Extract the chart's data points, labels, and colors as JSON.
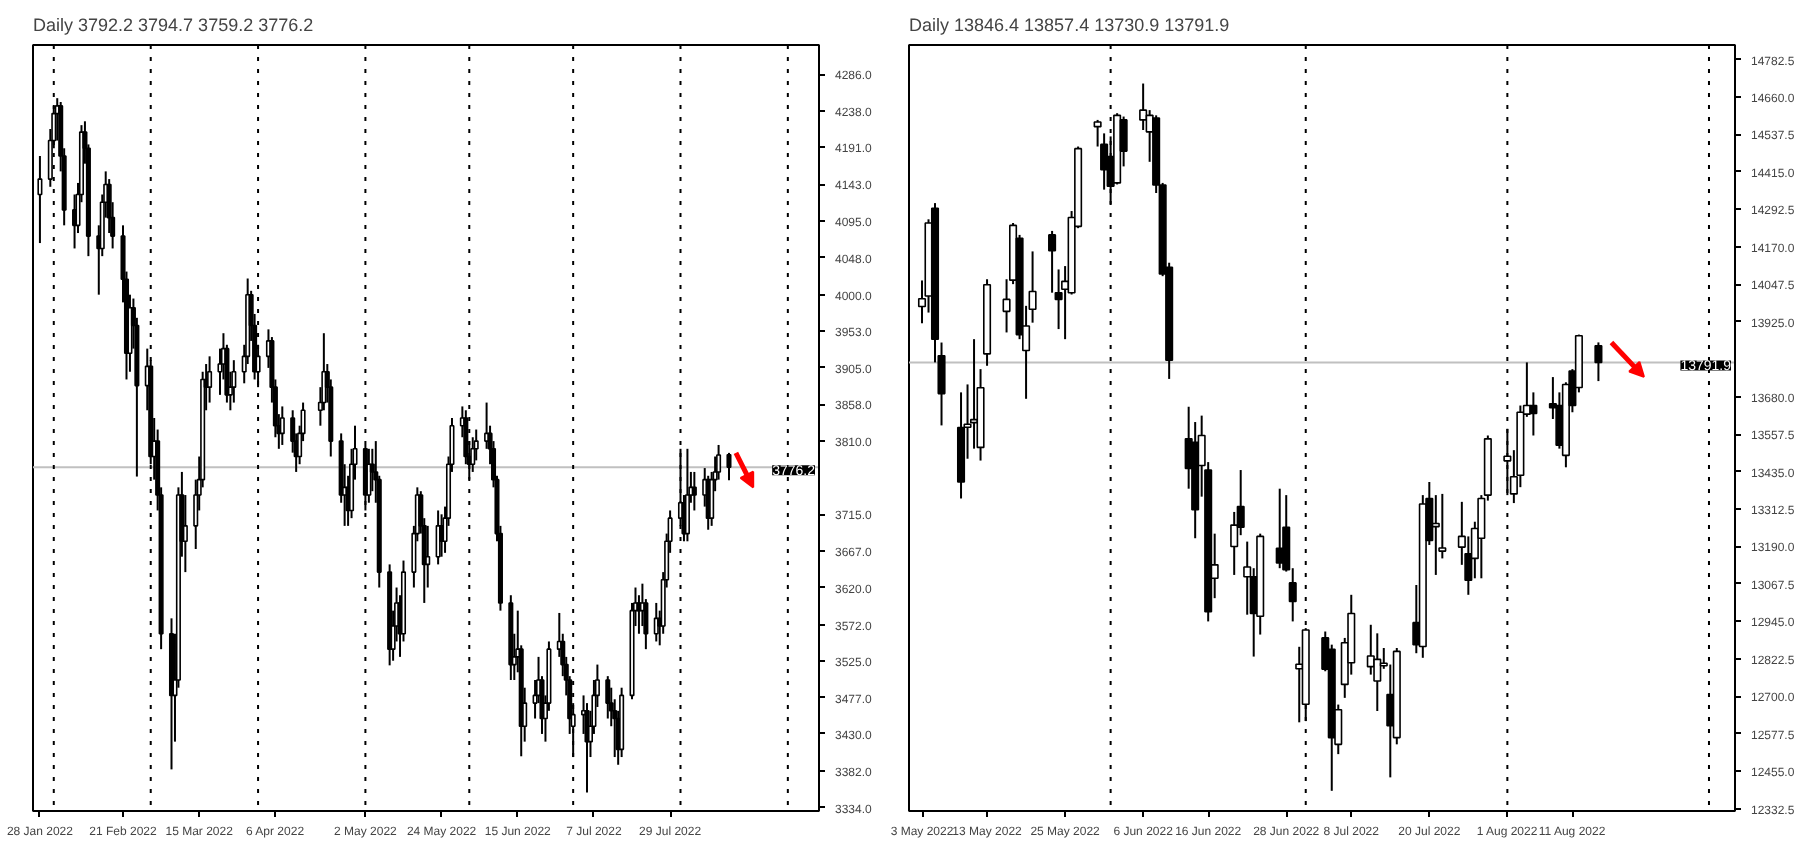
{
  "chart_data": [
    {
      "type": "candlestick",
      "title": "Daily  3792.2 3794.7 3759.2 3776.2",
      "colors": [
        "#ffffff",
        "#ffffff",
        "#ffffff",
        "#ffffff",
        "#000000",
        "#000000",
        "#000000",
        "#ffffff",
        "#ffffff",
        "#000000",
        "#000000",
        "#000000",
        "#ffffff",
        "#ffffff",
        "#000000",
        "#000000",
        "#000000",
        "#000000",
        "#ffffff",
        "#000000",
        "#000000",
        "#ffffff",
        "#000000",
        "#ffffff",
        "#000000",
        "#000000",
        "#000000",
        "#ffffff",
        "#ffffff",
        "#000000",
        "#ffffff",
        "#ffffff",
        "#ffffff",
        "#ffffff",
        "#000000",
        "#ffffff",
        "#ffffff",
        "#ffffff",
        "#000000",
        "#ffffff",
        "#ffffff",
        "#ffffff",
        "#ffffff",
        "#000000",
        "#000000",
        "#ffffff",
        "#ffffff",
        "#000000",
        "#000000",
        "#000000",
        "#ffffff",
        "#000000",
        "#000000",
        "#ffffff",
        "#ffffff",
        "#ffffff",
        "#ffffff",
        "#000000",
        "#000000",
        "#000000",
        "#ffffff",
        "#000000",
        "#ffffff",
        "#ffffff",
        "#000000",
        "#ffffff",
        "#000000",
        "#000000",
        "#000000",
        "#000000",
        "#ffffff",
        "#ffffff",
        "#000000",
        "#ffffff",
        "#ffffff",
        "#ffffff",
        "#000000",
        "#000000",
        "#ffffff",
        "#ffffff",
        "#000000",
        "#ffffff",
        "#ffffff",
        "#ffffff",
        "#ffffff",
        "#000000",
        "#000000",
        "#ffffff",
        "#ffffff",
        "#ffffff",
        "#000000",
        "#000000",
        "#000000",
        "#000000",
        "#000000",
        "#ffffff",
        "#ffffff",
        "#000000",
        "#ffffff",
        "#ffffff",
        "#ffffff",
        "#000000",
        "#ffffff",
        "#ffffff",
        "#ffffff",
        "#000000",
        "#000000",
        "#000000",
        "#ffffff",
        "#ffffff",
        "#000000",
        "#ffffff",
        "#ffffff",
        "#ffffff",
        "#000000",
        "#000000",
        "#000000",
        "#000000",
        "#ffffff",
        "#ffffff",
        "#ffffff",
        "#000000",
        "#ffffff",
        "#000000",
        "#ffffff",
        "#000000",
        "#ffffff",
        "#ffffff",
        "#ffffff",
        "#ffffff",
        "#000000",
        "#ffffff",
        "#ffffff",
        "#000000",
        "#ffffff",
        "#000000",
        "#ffffff",
        "#ffffff",
        "#ffffff",
        "#000000"
      ],
      "xlim": [
        "2022-01-26",
        "2022-09-10"
      ],
      "ylim": [
        3330,
        4324
      ],
      "xticks": [
        {
          "value": "2022-01-28",
          "label": "28 Jan 2022"
        },
        {
          "value": "2022-02-21",
          "label": "21 Feb 2022"
        },
        {
          "value": "2022-03-15",
          "label": "15 Mar 2022"
        },
        {
          "value": "2022-04-06",
          "label": "6 Apr 2022"
        },
        {
          "value": "2022-05-02",
          "label": "2 May 2022"
        },
        {
          "value": "2022-05-24",
          "label": "24 May 2022"
        },
        {
          "value": "2022-06-15",
          "label": "15 Jun 2022"
        },
        {
          "value": "2022-07-07",
          "label": "7 Jul 2022"
        },
        {
          "value": "2022-07-29",
          "label": "29 Jul 2022"
        }
      ],
      "yticks": [
        {
          "value": 4286,
          "label": "4286.0"
        },
        {
          "value": 4238,
          "label": "4238.0"
        },
        {
          "value": 4191,
          "label": "4191.0"
        },
        {
          "value": 4143,
          "label": "4143.0"
        },
        {
          "value": 4095,
          "label": "4095.0"
        },
        {
          "value": 4048,
          "label": "4048.0"
        },
        {
          "value": 4000,
          "label": "4000.0"
        },
        {
          "value": 3953,
          "label": "3953.0"
        },
        {
          "value": 3905,
          "label": "3905.0"
        },
        {
          "value": 3858,
          "label": "3858.0"
        },
        {
          "value": 3810,
          "label": "3810.0"
        },
        {
          "value": 3715,
          "label": "3715.0"
        },
        {
          "value": 3667,
          "label": "3667.0"
        },
        {
          "value": 3620,
          "label": "3620.0"
        },
        {
          "value": 3572,
          "label": "3572.0"
        },
        {
          "value": 3525,
          "label": "3525.0"
        },
        {
          "value": 3477,
          "label": "3477.0"
        },
        {
          "value": 3430,
          "label": "3430.0"
        },
        {
          "value": 3382,
          "label": "3382.0"
        },
        {
          "value": 3334,
          "label": "3334.0"
        }
      ],
      "ref_lines": [
        {
          "axis": "y",
          "value": 3776.2,
          "label": "3776.2",
          "color": "#c0c0c0"
        },
        {
          "axis": "x",
          "value": "2022-02-01",
          "line_style": "dotted",
          "color": "#000000"
        },
        {
          "axis": "x",
          "value": "2022-03-01",
          "line_style": "dotted",
          "color": "#000000"
        },
        {
          "axis": "x",
          "value": "2022-04-01",
          "line_style": "dotted",
          "color": "#000000"
        },
        {
          "axis": "x",
          "value": "2022-05-02",
          "line_style": "dotted",
          "color": "#000000"
        },
        {
          "axis": "x",
          "value": "2022-06-01",
          "line_style": "dotted",
          "color": "#000000"
        },
        {
          "axis": "x",
          "value": "2022-07-01",
          "line_style": "dotted",
          "color": "#000000"
        },
        {
          "axis": "x",
          "value": "2022-08-01",
          "line_style": "dotted",
          "color": "#000000"
        },
        {
          "axis": "x",
          "value": "2022-09-01",
          "line_style": "dotted",
          "color": "#000000"
        }
      ],
      "x": [
        "2022-01-28",
        "2022-01-31",
        "2022-02-01",
        "2022-02-02",
        "2022-02-03",
        "2022-02-04",
        "2022-02-07",
        "2022-02-08",
        "2022-02-09",
        "2022-02-10",
        "2022-02-11",
        "2022-02-14",
        "2022-02-15",
        "2022-02-16",
        "2022-02-17",
        "2022-02-18",
        "2022-02-21",
        "2022-02-22",
        "2022-02-23",
        "2022-02-24",
        "2022-02-25",
        "2022-02-28",
        "2022-03-01",
        "2022-03-02",
        "2022-03-03",
        "2022-03-04",
        "2022-03-07",
        "2022-03-08",
        "2022-03-09",
        "2022-03-10",
        "2022-03-11",
        "2022-03-14",
        "2022-03-15",
        "2022-03-16",
        "2022-03-17",
        "2022-03-18",
        "2022-03-21",
        "2022-03-22",
        "2022-03-23",
        "2022-03-24",
        "2022-03-25",
        "2022-03-28",
        "2022-03-29",
        "2022-03-30",
        "2022-03-31",
        "2022-04-01",
        "2022-04-04",
        "2022-04-05",
        "2022-04-06",
        "2022-04-07",
        "2022-04-08",
        "2022-04-11",
        "2022-04-12",
        "2022-04-13",
        "2022-04-14",
        "2022-04-19",
        "2022-04-20",
        "2022-04-21",
        "2022-04-22",
        "2022-04-25",
        "2022-04-26",
        "2022-04-27",
        "2022-04-28",
        "2022-04-29",
        "2022-05-02",
        "2022-05-03",
        "2022-05-04",
        "2022-05-05",
        "2022-05-06",
        "2022-05-09",
        "2022-05-10",
        "2022-05-11",
        "2022-05-12",
        "2022-05-13",
        "2022-05-16",
        "2022-05-17",
        "2022-05-18",
        "2022-05-19",
        "2022-05-20",
        "2022-05-23",
        "2022-05-24",
        "2022-05-25",
        "2022-05-26",
        "2022-05-27",
        "2022-05-30",
        "2022-05-31",
        "2022-06-01",
        "2022-06-02",
        "2022-06-03",
        "2022-06-06",
        "2022-06-07",
        "2022-06-08",
        "2022-06-09",
        "2022-06-10",
        "2022-06-13",
        "2022-06-14",
        "2022-06-15",
        "2022-06-16",
        "2022-06-17",
        "2022-06-20",
        "2022-06-21",
        "2022-06-22",
        "2022-06-23",
        "2022-06-24",
        "2022-06-27",
        "2022-06-28",
        "2022-06-29",
        "2022-06-30",
        "2022-07-01",
        "2022-07-04",
        "2022-07-05",
        "2022-07-06",
        "2022-07-07",
        "2022-07-08",
        "2022-07-11",
        "2022-07-12",
        "2022-07-13",
        "2022-07-14",
        "2022-07-15",
        "2022-07-18",
        "2022-07-19",
        "2022-07-20",
        "2022-07-21",
        "2022-07-22",
        "2022-07-25",
        "2022-07-26",
        "2022-07-27",
        "2022-07-28",
        "2022-07-29",
        "2022-08-01",
        "2022-08-02",
        "2022-08-03",
        "2022-08-04",
        "2022-08-05",
        "2022-08-08",
        "2022-08-09",
        "2022-08-10",
        "2022-08-11",
        "2022-08-12",
        "2022-08-15"
      ],
      "ohlc": [
        [
          4130,
          4180,
          4067,
          4150
        ],
        [
          4150,
          4215,
          4140,
          4200
        ],
        [
          4200,
          4245,
          4190,
          4235
        ],
        [
          4235,
          4255,
          4200,
          4245
        ],
        [
          4245,
          4250,
          4160,
          4180
        ],
        [
          4180,
          4190,
          4090,
          4110
        ],
        [
          4110,
          4130,
          4060,
          4090
        ],
        [
          4090,
          4145,
          4080,
          4130
        ],
        [
          4130,
          4220,
          4120,
          4211
        ],
        [
          4211,
          4225,
          4170,
          4190
        ],
        [
          4190,
          4195,
          4050,
          4076
        ],
        [
          4076,
          4090,
          4000,
          4060
        ],
        [
          4060,
          4130,
          4050,
          4120
        ],
        [
          4120,
          4160,
          4100,
          4143
        ],
        [
          4143,
          4150,
          4080,
          4100
        ],
        [
          4100,
          4120,
          4060,
          4076
        ],
        [
          4076,
          4090,
          3990,
          4020
        ],
        [
          4020,
          4030,
          3890,
          3924
        ],
        [
          3924,
          4000,
          3900,
          3983
        ],
        [
          3983,
          3995,
          3930,
          3960
        ],
        [
          3960,
          3970,
          3764,
          3882
        ],
        [
          3882,
          3930,
          3850,
          3907
        ],
        [
          3907,
          3915,
          3780,
          3790
        ],
        [
          3790,
          3840,
          3760,
          3810
        ],
        [
          3810,
          3825,
          3720,
          3740
        ],
        [
          3740,
          3750,
          3540,
          3560
        ],
        [
          3560,
          3580,
          3384,
          3480
        ],
        [
          3480,
          3560,
          3420,
          3500
        ],
        [
          3500,
          3750,
          3490,
          3740
        ],
        [
          3740,
          3770,
          3660,
          3680
        ],
        [
          3680,
          3740,
          3640,
          3700
        ],
        [
          3700,
          3760,
          3670,
          3740
        ],
        [
          3740,
          3790,
          3720,
          3760
        ],
        [
          3760,
          3900,
          3750,
          3890
        ],
        [
          3890,
          3910,
          3850,
          3880
        ],
        [
          3880,
          3920,
          3860,
          3900
        ],
        [
          3900,
          3930,
          3870,
          3910
        ],
        [
          3910,
          3950,
          3890,
          3930
        ],
        [
          3930,
          3935,
          3860,
          3870
        ],
        [
          3870,
          3900,
          3850,
          3880
        ],
        [
          3880,
          3915,
          3860,
          3900
        ],
        [
          3900,
          3935,
          3885,
          3920
        ],
        [
          3920,
          4021,
          3910,
          4000
        ],
        [
          4000,
          4005,
          3940,
          3960
        ],
        [
          3960,
          3975,
          3890,
          3900
        ],
        [
          3900,
          3935,
          3880,
          3920
        ],
        [
          3920,
          3955,
          3905,
          3940
        ],
        [
          3940,
          3945,
          3860,
          3880
        ],
        [
          3880,
          3890,
          3815,
          3830
        ],
        [
          3830,
          3845,
          3800,
          3820
        ],
        [
          3820,
          3855,
          3805,
          3840
        ],
        [
          3840,
          3850,
          3795,
          3810
        ],
        [
          3810,
          3820,
          3770,
          3790
        ],
        [
          3790,
          3830,
          3780,
          3820
        ],
        [
          3820,
          3860,
          3810,
          3850
        ],
        [
          3850,
          3880,
          3830,
          3860
        ],
        [
          3860,
          3950,
          3850,
          3900
        ],
        [
          3900,
          3910,
          3860,
          3880
        ],
        [
          3880,
          3890,
          3790,
          3810
        ],
        [
          3810,
          3820,
          3730,
          3740
        ],
        [
          3740,
          3780,
          3700,
          3750
        ],
        [
          3750,
          3765,
          3700,
          3720
        ],
        [
          3720,
          3800,
          3710,
          3780
        ],
        [
          3780,
          3830,
          3760,
          3800
        ],
        [
          3800,
          3805,
          3720,
          3740
        ],
        [
          3740,
          3800,
          3730,
          3780
        ],
        [
          3780,
          3800,
          3745,
          3770
        ],
        [
          3770,
          3810,
          3730,
          3760
        ],
        [
          3760,
          3765,
          3620,
          3640
        ],
        [
          3640,
          3650,
          3519,
          3540
        ],
        [
          3540,
          3590,
          3525,
          3570
        ],
        [
          3570,
          3620,
          3550,
          3600
        ],
        [
          3600,
          3610,
          3530,
          3560
        ],
        [
          3560,
          3655,
          3550,
          3640
        ],
        [
          3640,
          3700,
          3620,
          3690
        ],
        [
          3690,
          3750,
          3680,
          3740
        ],
        [
          3740,
          3745,
          3690,
          3700
        ],
        [
          3700,
          3710,
          3600,
          3650
        ],
        [
          3650,
          3700,
          3620,
          3660
        ],
        [
          3660,
          3720,
          3650,
          3700
        ],
        [
          3700,
          3715,
          3660,
          3680
        ],
        [
          3680,
          3725,
          3665,
          3710
        ],
        [
          3710,
          3790,
          3700,
          3780
        ],
        [
          3780,
          3840,
          3770,
          3830
        ],
        [
          3830,
          3855,
          3815,
          3840
        ],
        [
          3840,
          3850,
          3780,
          3790
        ],
        [
          3790,
          3810,
          3760,
          3780
        ],
        [
          3780,
          3815,
          3770,
          3800
        ],
        [
          3800,
          3825,
          3785,
          3810
        ],
        [
          3810,
          3860,
          3800,
          3820
        ],
        [
          3820,
          3830,
          3780,
          3800
        ],
        [
          3800,
          3810,
          3750,
          3760
        ],
        [
          3760,
          3765,
          3680,
          3690
        ],
        [
          3690,
          3700,
          3590,
          3600
        ],
        [
          3600,
          3610,
          3500,
          3520
        ],
        [
          3520,
          3560,
          3500,
          3530
        ],
        [
          3530,
          3590,
          3510,
          3540
        ],
        [
          3540,
          3545,
          3401,
          3440
        ],
        [
          3440,
          3490,
          3420,
          3470
        ],
        [
          3470,
          3500,
          3450,
          3480
        ],
        [
          3480,
          3530,
          3470,
          3500
        ],
        [
          3500,
          3505,
          3430,
          3450
        ],
        [
          3450,
          3480,
          3420,
          3470
        ],
        [
          3470,
          3550,
          3460,
          3540
        ],
        [
          3540,
          3587,
          3530,
          3550
        ],
        [
          3550,
          3560,
          3505,
          3520
        ],
        [
          3520,
          3530,
          3480,
          3500
        ],
        [
          3500,
          3505,
          3430,
          3450
        ],
        [
          3440,
          3470,
          3400,
          3455
        ],
        [
          3455,
          3480,
          3430,
          3460
        ],
        [
          3460,
          3470,
          3354,
          3420
        ],
        [
          3420,
          3460,
          3400,
          3440
        ],
        [
          3440,
          3500,
          3430,
          3480
        ],
        [
          3480,
          3520,
          3465,
          3500
        ],
        [
          3500,
          3505,
          3450,
          3470
        ],
        [
          3470,
          3490,
          3440,
          3460
        ],
        [
          3460,
          3475,
          3400,
          3450
        ],
        [
          3450,
          3460,
          3390,
          3410
        ],
        [
          3410,
          3490,
          3400,
          3480
        ],
        [
          3480,
          3600,
          3475,
          3590
        ],
        [
          3590,
          3620,
          3570,
          3600
        ],
        [
          3600,
          3610,
          3560,
          3590
        ],
        [
          3590,
          3625,
          3570,
          3600
        ],
        [
          3600,
          3605,
          3540,
          3560
        ],
        [
          3560,
          3600,
          3550,
          3580
        ],
        [
          3580,
          3590,
          3545,
          3570
        ],
        [
          3570,
          3640,
          3560,
          3630
        ],
        [
          3630,
          3690,
          3620,
          3680
        ],
        [
          3680,
          3720,
          3665,
          3710
        ],
        [
          3710,
          3800,
          3700,
          3730
        ],
        [
          3730,
          3740,
          3680,
          3690
        ],
        [
          3690,
          3800,
          3680,
          3740
        ],
        [
          3740,
          3770,
          3730,
          3750
        ],
        [
          3750,
          3770,
          3720,
          3740
        ],
        [
          3740,
          3775,
          3725,
          3760
        ],
        [
          3760,
          3765,
          3695,
          3710
        ],
        [
          3710,
          3770,
          3700,
          3760
        ],
        [
          3760,
          3790,
          3745,
          3770
        ],
        [
          3770,
          3805,
          3760,
          3792
        ],
        [
          3792.2,
          3794.7,
          3759.2,
          3776.2
        ]
      ]
    },
    {
      "type": "candlestick",
      "title": "Daily  13846.4 13857.4 13730.9 13791.9",
      "colors": [
        "#ffffff",
        "#ffffff",
        "#000000",
        "#000000",
        "#000000",
        "#ffffff",
        "#ffffff",
        "#ffffff",
        "#ffffff",
        "#ffffff",
        "#ffffff",
        "#000000",
        "#ffffff",
        "#ffffff",
        "#000000",
        "#000000",
        "#ffffff",
        "#ffffff",
        "#ffffff",
        "#ffffff",
        "#000000",
        "#000000",
        "#ffffff",
        "#000000",
        "#ffffff",
        "#ffffff",
        "#000000",
        "#000000",
        "#000000",
        "#000000",
        "#000000",
        "#ffffff",
        "#000000",
        "#ffffff",
        "#ffffff",
        "#000000",
        "#ffffff",
        "#000000",
        "#ffffff",
        "#000000",
        "#000000",
        "#000000",
        "#ffffff",
        "#ffffff",
        "#000000",
        "#000000",
        "#ffffff",
        "#ffffff",
        "#ffffff",
        "#ffffff",
        "#ffffff",
        "#ffffff",
        "#000000",
        "#ffffff",
        "#000000",
        "#ffffff",
        "#000000",
        "#ffffff",
        "#ffffff",
        "#ffffff",
        "#000000",
        "#ffffff",
        "#ffffff",
        "#ffffff",
        "#ffffff",
        "#ffffff",
        "#ffffff",
        "#ffffff",
        "#000000",
        "#000000",
        "#000000",
        "#ffffff",
        "#000000",
        "#ffffff",
        "#000000"
      ],
      "xlim": [
        "2022-05-01",
        "2022-09-05"
      ],
      "ylim": [
        12325,
        14830
      ],
      "xticks": [
        {
          "value": "2022-05-03",
          "label": "3 May 2022"
        },
        {
          "value": "2022-05-13",
          "label": "13 May 2022"
        },
        {
          "value": "2022-05-25",
          "label": "25 May 2022"
        },
        {
          "value": "2022-06-06",
          "label": "6 Jun 2022"
        },
        {
          "value": "2022-06-16",
          "label": "16 Jun 2022"
        },
        {
          "value": "2022-06-28",
          "label": "28 Jun 2022"
        },
        {
          "value": "2022-07-08",
          "label": "8 Jul 2022"
        },
        {
          "value": "2022-07-20",
          "label": "20 Jul 2022"
        },
        {
          "value": "2022-08-01",
          "label": "1 Aug 2022"
        },
        {
          "value": "2022-08-11",
          "label": "11 Aug 2022"
        }
      ],
      "yticks": [
        14782.5,
        {
          "value": 14660,
          "label": "14660.0"
        },
        14537.5,
        {
          "value": 14415,
          "label": "14415.0"
        },
        14292.5,
        {
          "value": 14170,
          "label": "14170.0"
        },
        14047.5,
        {
          "value": 13925,
          "label": "13925.0"
        },
        {
          "value": 13680,
          "label": "13680.0"
        },
        13557.5,
        {
          "value": 13435,
          "label": "13435.0"
        },
        13312.5,
        {
          "value": 13190,
          "label": "13190.0"
        },
        13067.5,
        {
          "value": 12945,
          "label": "12945.0"
        },
        12822.5,
        {
          "value": 12700,
          "label": "12700.0"
        },
        12577.5,
        {
          "value": 12455,
          "label": "12455.0"
        },
        12332.5
      ],
      "ref_lines": [
        {
          "axis": "y",
          "value": 13791.9,
          "label": "13791.9",
          "color": "#c0c0c0"
        },
        {
          "axis": "x",
          "value": "2022-06-01",
          "line_style": "dotted",
          "color": "#000000"
        },
        {
          "axis": "x",
          "value": "2022-07-01",
          "line_style": "dotted",
          "color": "#000000"
        },
        {
          "axis": "x",
          "value": "2022-08-01",
          "line_style": "dotted",
          "color": "#000000"
        },
        {
          "axis": "x",
          "value": "2022-09-01",
          "line_style": "dotted",
          "color": "#000000"
        }
      ],
      "x": [
        "2022-05-03",
        "2022-05-04",
        "2022-05-05",
        "2022-05-06",
        "2022-05-09",
        "2022-05-10",
        "2022-05-11",
        "2022-05-12",
        "2022-05-13",
        "2022-05-16",
        "2022-05-17",
        "2022-05-18",
        "2022-05-19",
        "2022-05-20",
        "2022-05-23",
        "2022-05-24",
        "2022-05-25",
        "2022-05-26",
        "2022-05-27",
        "2022-05-30",
        "2022-05-31",
        "2022-06-01",
        "2022-06-02",
        "2022-06-03",
        "2022-06-06",
        "2022-06-07",
        "2022-06-08",
        "2022-06-09",
        "2022-06-10",
        "2022-06-13",
        "2022-06-14",
        "2022-06-15",
        "2022-06-16",
        "2022-06-17",
        "2022-06-20",
        "2022-06-21",
        "2022-06-22",
        "2022-06-23",
        "2022-06-24",
        "2022-06-27",
        "2022-06-28",
        "2022-06-29",
        "2022-06-30",
        "2022-07-01",
        "2022-07-04",
        "2022-07-05",
        "2022-07-06",
        "2022-07-07",
        "2022-07-08",
        "2022-07-11",
        "2022-07-12",
        "2022-07-13",
        "2022-07-14",
        "2022-07-15",
        "2022-07-18",
        "2022-07-19",
        "2022-07-20",
        "2022-07-21",
        "2022-07-22",
        "2022-07-25",
        "2022-07-26",
        "2022-07-27",
        "2022-07-28",
        "2022-07-29",
        "2022-08-01",
        "2022-08-02",
        "2022-08-03",
        "2022-08-04",
        "2022-08-05",
        "2022-08-08",
        "2022-08-09",
        "2022-08-10",
        "2022-08-11",
        "2022-08-12",
        "2022-08-15"
      ],
      "ohlc": [
        [
          13975,
          14060,
          13920,
          14000
        ],
        [
          14009,
          14260,
          13955,
          14248
        ],
        [
          14296,
          14313,
          13792,
          13868
        ],
        [
          13814,
          13857,
          13586,
          13690
        ],
        [
          13579,
          13694,
          13347,
          13401
        ],
        [
          13580,
          13720,
          13477,
          13590
        ],
        [
          13595,
          13868,
          13510,
          13605
        ],
        [
          13514,
          13770,
          13471,
          13709
        ],
        [
          13820,
          14064,
          13781,
          14046
        ],
        [
          13959,
          14064,
          13890,
          13998
        ],
        [
          14061,
          14248,
          14048,
          14240
        ],
        [
          14198,
          14209,
          13868,
          13883
        ],
        [
          13831,
          13977,
          13673,
          13911
        ],
        [
          13966,
          14155,
          13922,
          14024
        ],
        [
          14209,
          14222,
          14020,
          14157
        ],
        [
          14020,
          14096,
          13901,
          13998
        ],
        [
          14031,
          14107,
          13868,
          14057
        ],
        [
          14020,
          14287,
          14014,
          14266
        ],
        [
          14237,
          14498,
          14231,
          14491
        ],
        [
          14563,
          14585,
          14498,
          14578
        ],
        [
          14505,
          14541,
          14357,
          14422
        ],
        [
          14465,
          14531,
          14309,
          14368
        ],
        [
          14379,
          14607,
          14374,
          14600
        ],
        [
          14585,
          14596,
          14433,
          14483
        ],
        [
          14585,
          14704,
          14552,
          14617
        ],
        [
          14546,
          14617,
          14448,
          14600
        ],
        [
          14591,
          14600,
          14346,
          14372
        ],
        [
          14372,
          14379,
          14074,
          14081
        ],
        [
          14103,
          14118,
          13738,
          13799
        ],
        [
          13542,
          13647,
          13379,
          13445
        ],
        [
          13531,
          13597,
          13217,
          13310
        ],
        [
          13455,
          13618,
          13353,
          13553
        ],
        [
          13440,
          13466,
          12945,
          12977
        ],
        [
          13086,
          13232,
          13021,
          13130
        ],
        [
          13190,
          13303,
          13097,
          13260
        ],
        [
          13321,
          13440,
          13227,
          13253
        ],
        [
          13091,
          13206,
          12967,
          13123
        ],
        [
          13091,
          13119,
          12830,
          12971
        ],
        [
          12962,
          13232,
          12902,
          13223
        ],
        [
          13184,
          13379,
          13119,
          13136
        ],
        [
          13253,
          13358,
          13108,
          13114
        ],
        [
          13071,
          13119,
          12945,
          13010
        ],
        [
          12790,
          12862,
          12615,
          12805
        ],
        [
          12674,
          12923,
          12619,
          12917
        ],
        [
          12891,
          12912,
          12782,
          12789
        ],
        [
          12854,
          12869,
          12391,
          12565
        ],
        [
          12543,
          12673,
          12511,
          12656
        ],
        [
          12739,
          12891,
          12695,
          12875
        ],
        [
          12810,
          13032,
          12771,
          12971
        ],
        [
          12797,
          12934,
          12771,
          12832
        ],
        [
          12750,
          12906,
          12652,
          12821
        ],
        [
          12800,
          12858,
          12790,
          12808
        ],
        [
          12706,
          12804,
          12435,
          12604
        ],
        [
          12565,
          12858,
          12543,
          12847
        ],
        [
          12941,
          13064,
          12841,
          12869
        ],
        [
          12863,
          13358,
          12826,
          13329
        ],
        [
          13347,
          13401,
          13195,
          13210
        ],
        [
          13255,
          13358,
          13097,
          13265
        ],
        [
          13175,
          13362,
          13151,
          13185
        ],
        [
          13188,
          13336,
          13130,
          13223
        ],
        [
          13166,
          13223,
          13032,
          13080
        ],
        [
          13151,
          13271,
          13086,
          13249
        ],
        [
          13217,
          13358,
          13086,
          13347
        ],
        [
          13358,
          13553,
          13340,
          13542
        ],
        [
          13470,
          13575,
          13358,
          13485
        ],
        [
          13362,
          13505,
          13332,
          13418
        ],
        [
          13423,
          13651,
          13384,
          13629
        ],
        [
          13623,
          13792,
          13614,
          13651
        ],
        [
          13651,
          13694,
          13553,
          13625
        ],
        [
          13657,
          13744,
          13607,
          13644
        ],
        [
          13651,
          13694,
          13510,
          13521
        ],
        [
          13488,
          13727,
          13449,
          13720
        ],
        [
          13764,
          13770,
          13629,
          13651
        ],
        [
          13710,
          13883,
          13694,
          13879
        ],
        [
          13846.4,
          13857.4,
          13730.9,
          13791.9
        ]
      ]
    }
  ]
}
